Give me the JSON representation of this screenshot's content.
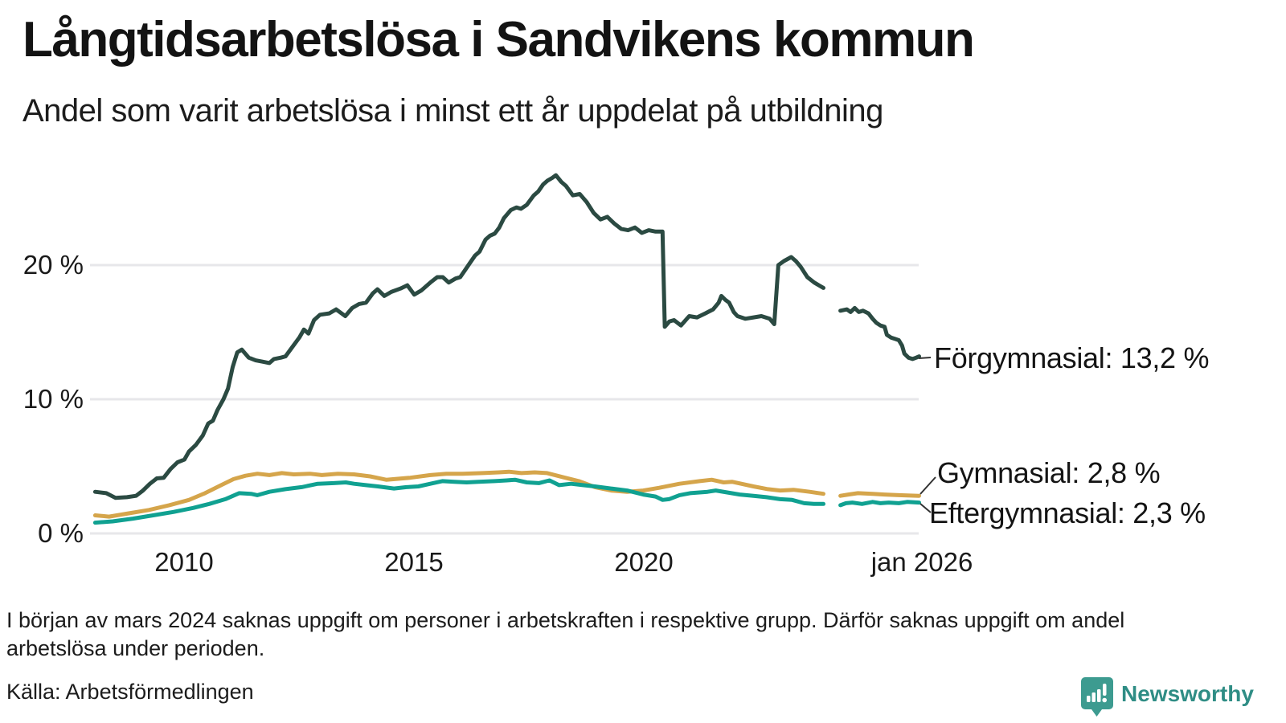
{
  "header": {
    "title": "Långtidsarbetslösa i Sandvikens kommun",
    "subtitle": "Andel som varit arbetslösa i minst ett år uppdelat på utbildning"
  },
  "colors": {
    "grid": "#e7e7ea",
    "text": "#1a1a1a",
    "leader": "#333333"
  },
  "chart_data": {
    "type": "line",
    "title": "Långtidsarbetslösa i Sandvikens kommun",
    "xlabel": "",
    "ylabel": "",
    "x_axis": {
      "ticks": [
        {
          "value": 2010,
          "label": "2010"
        },
        {
          "value": 2015,
          "label": "2015"
        },
        {
          "value": 2020,
          "label": "2020"
        },
        {
          "value": 2026.04,
          "label": "jan 2026"
        }
      ],
      "range": [
        2008.0,
        2026.3
      ]
    },
    "y_axis": {
      "unit": "%",
      "ticks": [
        {
          "value": 0,
          "label": "0 %"
        },
        {
          "value": 10,
          "label": "10 %"
        },
        {
          "value": 20,
          "label": "20 %"
        }
      ],
      "range": [
        0,
        27.5
      ],
      "grid": true
    },
    "data_gap": {
      "from": 2023.95,
      "to": 2024.25
    },
    "series": [
      {
        "name": "Gymnasial",
        "end_label": "Gymnasial:  2,8 %",
        "final_value": "2,8 %",
        "color": "#d5a54b",
        "points": [
          [
            2008.06,
            1.35
          ],
          [
            2008.36,
            1.25
          ],
          [
            2008.79,
            1.5
          ],
          [
            2009.23,
            1.75
          ],
          [
            2009.67,
            2.1
          ],
          [
            2010.1,
            2.5
          ],
          [
            2010.45,
            3.0
          ],
          [
            2010.8,
            3.6
          ],
          [
            2011.07,
            4.05
          ],
          [
            2011.33,
            4.3
          ],
          [
            2011.59,
            4.45
          ],
          [
            2011.85,
            4.35
          ],
          [
            2012.12,
            4.5
          ],
          [
            2012.38,
            4.4
          ],
          [
            2012.73,
            4.45
          ],
          [
            2012.99,
            4.35
          ],
          [
            2013.34,
            4.45
          ],
          [
            2013.69,
            4.4
          ],
          [
            2014.04,
            4.25
          ],
          [
            2014.39,
            4.0
          ],
          [
            2014.91,
            4.15
          ],
          [
            2015.35,
            4.35
          ],
          [
            2015.7,
            4.45
          ],
          [
            2016.05,
            4.45
          ],
          [
            2016.49,
            4.5
          ],
          [
            2016.84,
            4.55
          ],
          [
            2017.06,
            4.6
          ],
          [
            2017.33,
            4.5
          ],
          [
            2017.62,
            4.55
          ],
          [
            2017.89,
            4.5
          ],
          [
            2018.23,
            4.2
          ],
          [
            2018.58,
            3.9
          ],
          [
            2018.93,
            3.45
          ],
          [
            2019.28,
            3.2
          ],
          [
            2019.63,
            3.1
          ],
          [
            2019.98,
            3.2
          ],
          [
            2020.33,
            3.4
          ],
          [
            2020.77,
            3.7
          ],
          [
            2021.21,
            3.9
          ],
          [
            2021.47,
            4.0
          ],
          [
            2021.73,
            3.8
          ],
          [
            2021.91,
            3.85
          ],
          [
            2022.38,
            3.5
          ],
          [
            2022.69,
            3.3
          ],
          [
            2022.96,
            3.2
          ],
          [
            2023.25,
            3.25
          ],
          [
            2023.6,
            3.1
          ],
          [
            2023.9,
            2.95
          ],
          null,
          [
            2024.27,
            2.8
          ],
          [
            2024.44,
            2.9
          ],
          [
            2024.65,
            3.0
          ],
          [
            2024.97,
            2.95
          ],
          [
            2025.23,
            2.9
          ],
          [
            2025.54,
            2.85
          ],
          [
            2025.98,
            2.8
          ]
        ]
      },
      {
        "name": "Eftergymnasial",
        "end_label": "Eftergymnasial:  2,3 %",
        "final_value": "2,3 %",
        "color": "#10a191",
        "points": [
          [
            2008.06,
            0.8
          ],
          [
            2008.44,
            0.9
          ],
          [
            2008.88,
            1.1
          ],
          [
            2009.32,
            1.35
          ],
          [
            2009.76,
            1.6
          ],
          [
            2010.19,
            1.9
          ],
          [
            2010.54,
            2.2
          ],
          [
            2010.89,
            2.55
          ],
          [
            2011.19,
            3.0
          ],
          [
            2011.45,
            2.95
          ],
          [
            2011.59,
            2.85
          ],
          [
            2011.85,
            3.1
          ],
          [
            2012.2,
            3.3
          ],
          [
            2012.55,
            3.45
          ],
          [
            2012.9,
            3.7
          ],
          [
            2013.25,
            3.75
          ],
          [
            2013.51,
            3.8
          ],
          [
            2013.69,
            3.7
          ],
          [
            2013.95,
            3.6
          ],
          [
            2014.21,
            3.5
          ],
          [
            2014.56,
            3.35
          ],
          [
            2014.83,
            3.45
          ],
          [
            2015.09,
            3.5
          ],
          [
            2015.35,
            3.7
          ],
          [
            2015.61,
            3.9
          ],
          [
            2015.87,
            3.85
          ],
          [
            2016.14,
            3.8
          ],
          [
            2016.4,
            3.85
          ],
          [
            2016.75,
            3.9
          ],
          [
            2017.01,
            3.95
          ],
          [
            2017.19,
            4.0
          ],
          [
            2017.45,
            3.8
          ],
          [
            2017.71,
            3.75
          ],
          [
            2017.94,
            3.95
          ],
          [
            2018.15,
            3.6
          ],
          [
            2018.41,
            3.7
          ],
          [
            2018.67,
            3.6
          ],
          [
            2018.93,
            3.5
          ],
          [
            2019.28,
            3.35
          ],
          [
            2019.63,
            3.2
          ],
          [
            2019.98,
            2.9
          ],
          [
            2020.25,
            2.75
          ],
          [
            2020.4,
            2.5
          ],
          [
            2020.54,
            2.55
          ],
          [
            2020.77,
            2.85
          ],
          [
            2021.0,
            3.0
          ],
          [
            2021.38,
            3.1
          ],
          [
            2021.56,
            3.2
          ],
          [
            2021.82,
            3.05
          ],
          [
            2022.08,
            2.9
          ],
          [
            2022.38,
            2.8
          ],
          [
            2022.66,
            2.7
          ],
          [
            2022.96,
            2.55
          ],
          [
            2023.22,
            2.5
          ],
          [
            2023.48,
            2.25
          ],
          [
            2023.69,
            2.2
          ],
          [
            2023.9,
            2.2
          ],
          null,
          [
            2024.27,
            2.1
          ],
          [
            2024.39,
            2.25
          ],
          [
            2024.53,
            2.3
          ],
          [
            2024.74,
            2.2
          ],
          [
            2024.97,
            2.35
          ],
          [
            2025.14,
            2.25
          ],
          [
            2025.32,
            2.3
          ],
          [
            2025.54,
            2.25
          ],
          [
            2025.72,
            2.35
          ],
          [
            2025.98,
            2.3
          ]
        ]
      },
      {
        "name": "Förgymnasial",
        "end_label": "Förgymnasial: 13,2 %",
        "final_value": "13,2 %",
        "color": "#2b4a42",
        "points": [
          [
            2008.06,
            3.1
          ],
          [
            2008.3,
            3.0
          ],
          [
            2008.5,
            2.65
          ],
          [
            2008.75,
            2.7
          ],
          [
            2008.95,
            2.8
          ],
          [
            2009.1,
            3.2
          ],
          [
            2009.25,
            3.7
          ],
          [
            2009.4,
            4.1
          ],
          [
            2009.55,
            4.15
          ],
          [
            2009.7,
            4.8
          ],
          [
            2009.85,
            5.3
          ],
          [
            2010.0,
            5.5
          ],
          [
            2010.1,
            6.1
          ],
          [
            2010.25,
            6.6
          ],
          [
            2010.4,
            7.3
          ],
          [
            2010.52,
            8.2
          ],
          [
            2010.62,
            8.4
          ],
          [
            2010.72,
            9.2
          ],
          [
            2010.85,
            10.0
          ],
          [
            2010.95,
            10.8
          ],
          [
            2011.05,
            12.4
          ],
          [
            2011.15,
            13.5
          ],
          [
            2011.25,
            13.7
          ],
          [
            2011.4,
            13.1
          ],
          [
            2011.55,
            12.9
          ],
          [
            2011.7,
            12.8
          ],
          [
            2011.85,
            12.7
          ],
          [
            2011.95,
            13.0
          ],
          [
            2012.1,
            13.1
          ],
          [
            2012.2,
            13.2
          ],
          [
            2012.35,
            13.9
          ],
          [
            2012.5,
            14.6
          ],
          [
            2012.6,
            15.2
          ],
          [
            2012.7,
            14.9
          ],
          [
            2012.82,
            15.9
          ],
          [
            2012.95,
            16.3
          ],
          [
            2013.15,
            16.4
          ],
          [
            2013.3,
            16.7
          ],
          [
            2013.5,
            16.2
          ],
          [
            2013.65,
            16.8
          ],
          [
            2013.8,
            17.1
          ],
          [
            2013.95,
            17.2
          ],
          [
            2014.1,
            17.9
          ],
          [
            2014.2,
            18.2
          ],
          [
            2014.35,
            17.7
          ],
          [
            2014.5,
            18.0
          ],
          [
            2014.7,
            18.25
          ],
          [
            2014.85,
            18.5
          ],
          [
            2015.0,
            17.8
          ],
          [
            2015.15,
            18.1
          ],
          [
            2015.35,
            18.7
          ],
          [
            2015.5,
            19.1
          ],
          [
            2015.62,
            19.1
          ],
          [
            2015.75,
            18.7
          ],
          [
            2015.9,
            19.0
          ],
          [
            2016.0,
            19.1
          ],
          [
            2016.1,
            19.6
          ],
          [
            2016.2,
            20.1
          ],
          [
            2016.32,
            20.7
          ],
          [
            2016.42,
            21.0
          ],
          [
            2016.55,
            21.9
          ],
          [
            2016.65,
            22.2
          ],
          [
            2016.75,
            22.35
          ],
          [
            2016.85,
            22.8
          ],
          [
            2016.95,
            23.5
          ],
          [
            2017.1,
            24.1
          ],
          [
            2017.22,
            24.3
          ],
          [
            2017.32,
            24.2
          ],
          [
            2017.45,
            24.5
          ],
          [
            2017.6,
            25.2
          ],
          [
            2017.7,
            25.5
          ],
          [
            2017.8,
            26.0
          ],
          [
            2017.9,
            26.3
          ],
          [
            2018.0,
            26.5
          ],
          [
            2018.08,
            26.7
          ],
          [
            2018.2,
            26.2
          ],
          [
            2018.3,
            25.9
          ],
          [
            2018.45,
            25.2
          ],
          [
            2018.6,
            25.3
          ],
          [
            2018.75,
            24.7
          ],
          [
            2018.9,
            23.9
          ],
          [
            2019.05,
            23.4
          ],
          [
            2019.2,
            23.6
          ],
          [
            2019.35,
            23.1
          ],
          [
            2019.5,
            22.7
          ],
          [
            2019.65,
            22.6
          ],
          [
            2019.8,
            22.8
          ],
          [
            2019.95,
            22.4
          ],
          [
            2020.1,
            22.6
          ],
          [
            2020.25,
            22.5
          ],
          [
            2020.4,
            22.5
          ],
          [
            2020.45,
            15.4
          ],
          [
            2020.55,
            15.8
          ],
          [
            2020.65,
            15.9
          ],
          [
            2020.8,
            15.5
          ],
          [
            2020.98,
            16.2
          ],
          [
            2021.15,
            16.1
          ],
          [
            2021.33,
            16.4
          ],
          [
            2021.5,
            16.7
          ],
          [
            2021.62,
            17.2
          ],
          [
            2021.68,
            17.7
          ],
          [
            2021.77,
            17.4
          ],
          [
            2021.85,
            17.2
          ],
          [
            2021.95,
            16.5
          ],
          [
            2022.03,
            16.2
          ],
          [
            2022.2,
            16.0
          ],
          [
            2022.38,
            16.1
          ],
          [
            2022.55,
            16.2
          ],
          [
            2022.73,
            16.0
          ],
          [
            2022.83,
            15.6
          ],
          [
            2022.92,
            20.0
          ],
          [
            2023.04,
            20.3
          ],
          [
            2023.2,
            20.6
          ],
          [
            2023.3,
            20.3
          ],
          [
            2023.4,
            19.9
          ],
          [
            2023.55,
            19.1
          ],
          [
            2023.7,
            18.7
          ],
          [
            2023.8,
            18.5
          ],
          [
            2023.9,
            18.3
          ],
          null,
          [
            2024.27,
            16.6
          ],
          [
            2024.41,
            16.7
          ],
          [
            2024.49,
            16.5
          ],
          [
            2024.58,
            16.8
          ],
          [
            2024.67,
            16.5
          ],
          [
            2024.76,
            16.6
          ],
          [
            2024.88,
            16.4
          ],
          [
            2024.97,
            16.0
          ],
          [
            2025.05,
            15.7
          ],
          [
            2025.14,
            15.5
          ],
          [
            2025.23,
            15.4
          ],
          [
            2025.28,
            14.8
          ],
          [
            2025.37,
            14.6
          ],
          [
            2025.46,
            14.5
          ],
          [
            2025.54,
            14.4
          ],
          [
            2025.61,
            14.0
          ],
          [
            2025.66,
            13.4
          ],
          [
            2025.75,
            13.1
          ],
          [
            2025.84,
            13.0
          ],
          [
            2025.92,
            13.1
          ],
          [
            2025.98,
            13.2
          ]
        ]
      }
    ]
  },
  "footnotes": {
    "note": "I början av mars 2024 saknas uppgift om personer i arbetskraften i respektive grupp. Därför saknas uppgift om andel arbetslösa under perioden.",
    "source": "Källa: Arbetsförmedlingen"
  },
  "branding": {
    "logo_text": "Newsworthy",
    "logo_color": "#2f8d85",
    "icon": "newsworthy-pin-barchart-icon",
    "icon_color": "#3d9b90"
  }
}
